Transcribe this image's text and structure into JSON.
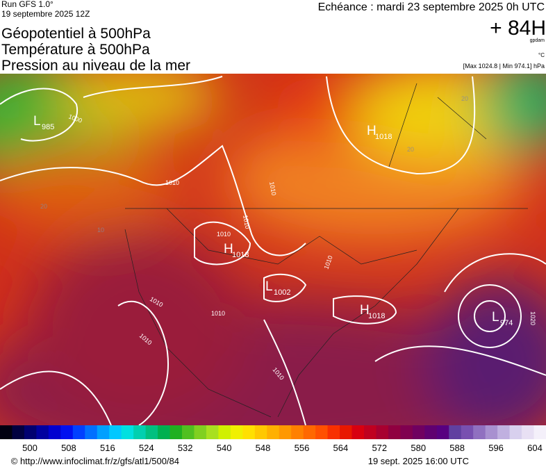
{
  "header": {
    "run": "Run GFS 1.0°",
    "run_date": "19 septembre 2025 12Z",
    "titles": [
      "Géopotentiel à 500hPa",
      "Température à 500hPa",
      "Pression au niveau de la mer"
    ],
    "valid_time": "Echéance : mardi 23 septembre 2025 0h UTC",
    "lead": "+ 84H",
    "unit_geo": "gpdam",
    "unit_temp": "°C",
    "pressure_range": "[Max 1024.8 | Min 974.1] hPa"
  },
  "map": {
    "pressure_centers": [
      {
        "kind": "L",
        "value": 985
      },
      {
        "kind": "H",
        "value": 1018
      },
      {
        "kind": "H",
        "value": 1018
      },
      {
        "kind": "L",
        "value": 1002
      },
      {
        "kind": "H",
        "value": 1018
      },
      {
        "kind": "L",
        "value": 974
      }
    ],
    "isobar_labels": [
      1000,
      1010,
      1010,
      1010,
      1010,
      1010,
      1010,
      1010,
      1010,
      1020,
      1010
    ],
    "temperature_labels": [
      20,
      20,
      20,
      10
    ]
  },
  "colorbar": {
    "labels": [
      500,
      508,
      516,
      524,
      532,
      540,
      548,
      556,
      564,
      572,
      580,
      588,
      596,
      604
    ]
  },
  "footer": {
    "source": "© http://www.infoclimat.fr/z/gfs/atl1/500/84",
    "issued": "19 sept. 2025 16:00 UTC"
  }
}
